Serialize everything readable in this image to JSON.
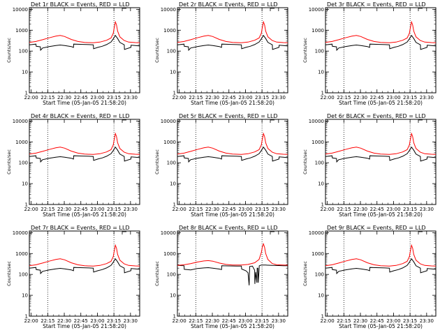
{
  "chart_data": [
    {
      "type": "line",
      "title": "Det 1r BLACK = Events, RED = LLD",
      "xlabel": "Start Time (05-Jan-05 21:58:20)",
      "ylabel": "Counts/sec",
      "x_ticks": [
        "22:00",
        "22:15",
        "22:30",
        "22:45",
        "23:00",
        "23:15",
        "23:30"
      ],
      "y_ticks": [
        "1",
        "10",
        "100",
        "1000",
        "10000"
      ],
      "y_scale": "log",
      "ylim": [
        1,
        12000
      ],
      "xlim_minutes": [
        0,
        100
      ],
      "series": [
        {
          "name": "Events",
          "color": "#000000",
          "variant": "normal"
        },
        {
          "name": "LLD",
          "color": "#ff0000",
          "variant": "normal"
        }
      ]
    },
    {
      "type": "line",
      "title": "Det 2r BLACK = Events, RED = LLD",
      "xlabel": "Start Time (05-Jan-05 21:58:20)",
      "ylabel": "Counts/sec",
      "x_ticks": [
        "22:00",
        "22:15",
        "22:30",
        "22:45",
        "23:00",
        "23:15",
        "23:30"
      ],
      "y_ticks": [
        "1",
        "10",
        "100",
        "1000",
        "10000"
      ],
      "y_scale": "log",
      "ylim": [
        1,
        12000
      ],
      "xlim_minutes": [
        0,
        100
      ],
      "series": [
        {
          "name": "Events",
          "color": "#000000",
          "variant": "normal"
        },
        {
          "name": "LLD",
          "color": "#ff0000",
          "variant": "normal"
        }
      ]
    },
    {
      "type": "line",
      "title": "Det 3r BLACK = Events, RED = LLD",
      "xlabel": "Start Time (05-Jan-05 21:58:20)",
      "ylabel": "Counts/sec",
      "x_ticks": [
        "22:00",
        "22:15",
        "22:30",
        "22:45",
        "23:00",
        "23:15",
        "23:30"
      ],
      "y_ticks": [
        "1",
        "10",
        "100",
        "1000",
        "10000"
      ],
      "y_scale": "log",
      "ylim": [
        1,
        12000
      ],
      "xlim_minutes": [
        0,
        100
      ],
      "series": [
        {
          "name": "Events",
          "color": "#000000",
          "variant": "normal"
        },
        {
          "name": "LLD",
          "color": "#ff0000",
          "variant": "normal"
        }
      ]
    },
    {
      "type": "line",
      "title": "Det 4r BLACK = Events, RED = LLD",
      "xlabel": "Start Time (05-Jan-05 21:58:20)",
      "ylabel": "Counts/sec",
      "x_ticks": [
        "22:00",
        "22:15",
        "22:30",
        "22:45",
        "23:00",
        "23:15",
        "23:30"
      ],
      "y_ticks": [
        "1",
        "10",
        "100",
        "1000",
        "10000"
      ],
      "y_scale": "log",
      "ylim": [
        1,
        12000
      ],
      "xlim_minutes": [
        0,
        100
      ],
      "series": [
        {
          "name": "Events",
          "color": "#000000",
          "variant": "normal"
        },
        {
          "name": "LLD",
          "color": "#ff0000",
          "variant": "normal"
        }
      ]
    },
    {
      "type": "line",
      "title": "Det 5r BLACK = Events, RED = LLD",
      "xlabel": "Start Time (05-Jan-05 21:58:20)",
      "ylabel": "Counts/sec",
      "x_ticks": [
        "22:00",
        "22:15",
        "22:30",
        "22:45",
        "23:00",
        "23:15",
        "23:30"
      ],
      "y_ticks": [
        "1",
        "10",
        "100",
        "1000",
        "10000"
      ],
      "y_scale": "log",
      "ylim": [
        1,
        12000
      ],
      "xlim_minutes": [
        0,
        100
      ],
      "series": [
        {
          "name": "Events",
          "color": "#000000",
          "variant": "normal"
        },
        {
          "name": "LLD",
          "color": "#ff0000",
          "variant": "normal"
        }
      ]
    },
    {
      "type": "line",
      "title": "Det 6r BLACK = Events, RED = LLD",
      "xlabel": "Start Time (05-Jan-05 21:58:20)",
      "ylabel": "Counts/sec",
      "x_ticks": [
        "22:00",
        "22:15",
        "22:30",
        "22:45",
        "23:00",
        "23:15",
        "23:30"
      ],
      "y_ticks": [
        "1",
        "10",
        "100",
        "1000",
        "10000"
      ],
      "y_scale": "log",
      "ylim": [
        1,
        12000
      ],
      "xlim_minutes": [
        0,
        100
      ],
      "series": [
        {
          "name": "Events",
          "color": "#000000",
          "variant": "normal"
        },
        {
          "name": "LLD",
          "color": "#ff0000",
          "variant": "normal"
        }
      ]
    },
    {
      "type": "line",
      "title": "Det 7r BLACK = Events, RED = LLD",
      "xlabel": "Start Time (05-Jan-05 21:58:20)",
      "ylabel": "Counts/sec",
      "x_ticks": [
        "22:00",
        "22:15",
        "22:30",
        "22:45",
        "23:00",
        "23:15",
        "23:30"
      ],
      "y_ticks": [
        "1",
        "10",
        "100",
        "1000",
        "10000"
      ],
      "y_scale": "log",
      "ylim": [
        1,
        12000
      ],
      "xlim_minutes": [
        0,
        100
      ],
      "series": [
        {
          "name": "Events",
          "color": "#000000",
          "variant": "normal"
        },
        {
          "name": "LLD",
          "color": "#ff0000",
          "variant": "normal"
        }
      ]
    },
    {
      "type": "line",
      "title": "Det 8r BLACK = Events, RED = LLD",
      "xlabel": "Start Time (05-Jan-05 21:58:20)",
      "ylabel": "Counts/sec",
      "x_ticks": [
        "22:00",
        "22:15",
        "22:30",
        "22:45",
        "23:00",
        "23:15",
        "23:30"
      ],
      "y_ticks": [
        "1",
        "10",
        "100",
        "1000",
        "10000"
      ],
      "y_scale": "log",
      "ylim": [
        1,
        12000
      ],
      "xlim_minutes": [
        0,
        100
      ],
      "series": [
        {
          "name": "Events",
          "color": "#000000",
          "variant": "det8"
        },
        {
          "name": "LLD",
          "color": "#ff0000",
          "variant": "det8"
        }
      ]
    },
    {
      "type": "line",
      "title": "Det 9r BLACK = Events, RED = LLD",
      "xlabel": "Start Time (05-Jan-05 21:58:20)",
      "ylabel": "Counts/sec",
      "x_ticks": [
        "22:00",
        "22:15",
        "22:30",
        "22:45",
        "23:00",
        "23:15",
        "23:30"
      ],
      "y_ticks": [
        "1",
        "10",
        "100",
        "1000",
        "10000"
      ],
      "y_scale": "log",
      "ylim": [
        1,
        12000
      ],
      "xlim_minutes": [
        0,
        100
      ],
      "series": [
        {
          "name": "Events",
          "color": "#000000",
          "variant": "normal"
        },
        {
          "name": "LLD",
          "color": "#ff0000",
          "variant": "normal"
        }
      ]
    }
  ],
  "profiles": {
    "red_normal": [
      [
        0,
        260
      ],
      [
        6,
        290
      ],
      [
        12,
        350
      ],
      [
        18,
        430
      ],
      [
        24,
        520
      ],
      [
        28,
        560
      ],
      [
        32,
        500
      ],
      [
        38,
        360
      ],
      [
        44,
        290
      ],
      [
        50,
        260
      ],
      [
        58,
        250
      ],
      [
        64,
        270
      ],
      [
        70,
        330
      ],
      [
        74,
        420
      ],
      [
        76,
        700
      ],
      [
        77,
        1400
      ],
      [
        78,
        2500
      ],
      [
        79,
        1800
      ],
      [
        80,
        900
      ],
      [
        82,
        480
      ],
      [
        86,
        320
      ],
      [
        90,
        270
      ],
      [
        96,
        255
      ],
      [
        100,
        250
      ]
    ],
    "black_normal": [
      [
        0,
        200
      ],
      [
        6,
        215
      ],
      [
        6.2,
        170
      ],
      [
        10,
        160
      ],
      [
        10.2,
        110
      ],
      [
        12,
        140
      ],
      [
        18,
        165
      ],
      [
        24,
        185
      ],
      [
        28,
        195
      ],
      [
        32,
        185
      ],
      [
        38,
        165
      ],
      [
        40,
        150
      ],
      [
        40.2,
        215
      ],
      [
        46,
        210
      ],
      [
        54,
        205
      ],
      [
        58,
        200
      ],
      [
        58.2,
        130
      ],
      [
        62,
        150
      ],
      [
        66,
        170
      ],
      [
        70,
        205
      ],
      [
        74,
        270
      ],
      [
        76,
        380
      ],
      [
        78,
        560
      ],
      [
        80,
        400
      ],
      [
        82,
        260
      ],
      [
        86,
        200
      ],
      [
        86.2,
        120
      ],
      [
        92,
        150
      ],
      [
        92.2,
        190
      ],
      [
        96,
        185
      ],
      [
        100,
        175
      ]
    ],
    "red_det8": [
      [
        0,
        270
      ],
      [
        6,
        290
      ],
      [
        12,
        330
      ],
      [
        18,
        390
      ],
      [
        24,
        440
      ],
      [
        28,
        460
      ],
      [
        32,
        430
      ],
      [
        38,
        350
      ],
      [
        44,
        300
      ],
      [
        50,
        280
      ],
      [
        58,
        280
      ],
      [
        64,
        300
      ],
      [
        70,
        360
      ],
      [
        74,
        520
      ],
      [
        76,
        1100
      ],
      [
        77,
        2100
      ],
      [
        78,
        2900
      ],
      [
        79,
        2000
      ],
      [
        80,
        1000
      ],
      [
        82,
        520
      ],
      [
        86,
        330
      ],
      [
        90,
        290
      ],
      [
        96,
        280
      ],
      [
        100,
        275
      ]
    ],
    "black_det8": [
      [
        0,
        270
      ],
      [
        6,
        260
      ],
      [
        6.2,
        175
      ],
      [
        12,
        165
      ],
      [
        18,
        190
      ],
      [
        24,
        205
      ],
      [
        28,
        210
      ],
      [
        32,
        200
      ],
      [
        38,
        180
      ],
      [
        40,
        170
      ],
      [
        40.2,
        260
      ],
      [
        46,
        255
      ],
      [
        54,
        250
      ],
      [
        58,
        250
      ],
      [
        58.2,
        180
      ],
      [
        62,
        150
      ],
      [
        64,
        120
      ],
      [
        65,
        30
      ],
      [
        65.5,
        240
      ],
      [
        68,
        250
      ],
      [
        70,
        160
      ],
      [
        70.2,
        35
      ],
      [
        71,
        130
      ],
      [
        72,
        40
      ],
      [
        72.3,
        200
      ],
      [
        73,
        200
      ],
      [
        73.2,
        40
      ],
      [
        74,
        150
      ],
      [
        74.2,
        260
      ],
      [
        76,
        280
      ],
      [
        80,
        280
      ],
      [
        86,
        270
      ],
      [
        92,
        265
      ],
      [
        96,
        262
      ],
      [
        100,
        260
      ]
    ]
  }
}
